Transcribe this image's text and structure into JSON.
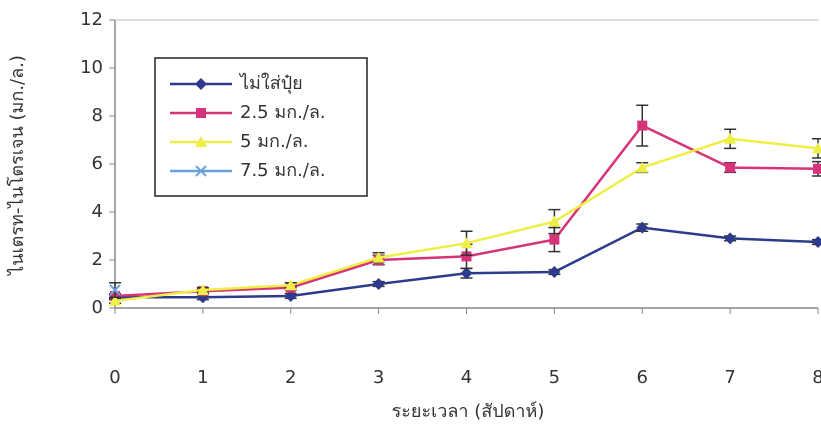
{
  "chart_data": {
    "type": "line",
    "x_label": "ระยะเวลา (สัปดาห์)",
    "y_label": "ไนเตรท-ไนโตรเจน (มก./ล.)",
    "x": [
      0,
      1,
      2,
      3,
      4,
      5,
      6,
      7,
      8
    ],
    "xlim": [
      0,
      8
    ],
    "xticks": [
      0,
      1,
      2,
      3,
      4,
      5,
      6,
      7,
      8
    ],
    "ylim": [
      0,
      12
    ],
    "yticks": [
      0,
      2,
      4,
      6,
      8,
      10,
      12
    ],
    "legend": "upper left",
    "series": [
      {
        "name": "ไม่ใส่ปุ๋ย",
        "color": "#2e3a8c",
        "marker": "diamond",
        "values": [
          0.45,
          0.45,
          0.5,
          1.0,
          1.45,
          1.5,
          3.35,
          2.9,
          2.75
        ],
        "errors": [
          0.1,
          0.1,
          0.1,
          0.1,
          0.2,
          0.1,
          0.15,
          0.1,
          0.1
        ]
      },
      {
        "name": "2.5  มก./ล.",
        "color": "#d6337a",
        "marker": "square",
        "values": [
          0.5,
          0.7,
          0.85,
          2.0,
          2.15,
          2.85,
          7.6,
          5.85,
          5.8
        ],
        "errors": [
          0.1,
          0.1,
          0.1,
          0.2,
          0.5,
          0.5,
          0.85,
          0.2,
          0.3
        ]
      },
      {
        "name": "5  มก./ล.",
        "color": "#eeee44",
        "marker": "triangle",
        "values": [
          0.3,
          0.75,
          0.95,
          2.1,
          2.7,
          3.6,
          5.85,
          7.05,
          6.65
        ],
        "errors": [
          0.1,
          0.1,
          0.1,
          0.2,
          0.5,
          0.5,
          0.2,
          0.4,
          0.4
        ]
      },
      {
        "name": "7.5  มก./ล.",
        "color": "#6aa0e0",
        "marker": "x",
        "values": [
          0.75,
          null,
          null,
          null,
          null,
          null,
          null,
          null,
          null
        ],
        "errors": [
          0.3,
          null,
          null,
          null,
          null,
          null,
          null,
          null,
          null
        ]
      }
    ]
  }
}
